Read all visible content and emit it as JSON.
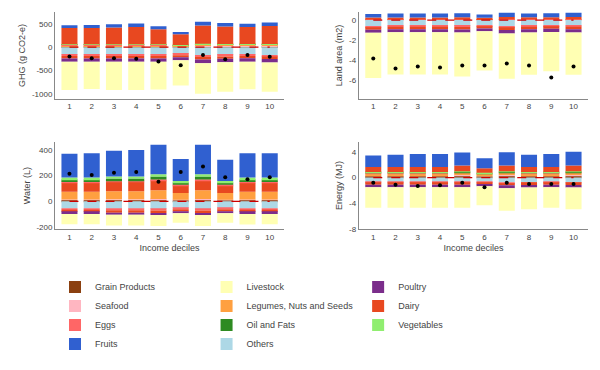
{
  "chart_data": [
    {
      "type": "bar",
      "stacked": true,
      "ylabel": "GHG (g CO2-e)",
      "grid": false,
      "x": [
        1,
        2,
        3,
        4,
        5,
        6,
        7,
        8,
        9,
        10
      ],
      "xlim": [
        0.35,
        10.65
      ],
      "xticks": [
        1,
        2,
        3,
        4,
        5,
        6,
        7,
        8,
        9,
        10
      ],
      "ylim": [
        -1100,
        750
      ],
      "yticks": [
        -1000,
        -500,
        0,
        500
      ],
      "series": [
        {
          "name": "Grain Products",
          "color": "#8B4010",
          "values": [
            10,
            10,
            10,
            10,
            10,
            8,
            12,
            12,
            12,
            12
          ]
        },
        {
          "name": "Seafood",
          "color": "#FFB6C1",
          "values": [
            15,
            15,
            15,
            15,
            15,
            12,
            18,
            18,
            18,
            18
          ]
        },
        {
          "name": "Legumes, Nuts and Seeds",
          "color": "#FFA040",
          "values": [
            20,
            20,
            20,
            20,
            20,
            16,
            24,
            22,
            22,
            22
          ]
        },
        {
          "name": "Eggs",
          "color": "#FF6666",
          "values": [
            5,
            5,
            5,
            5,
            5,
            4,
            6,
            6,
            6,
            6
          ]
        },
        {
          "name": "Oil and Fats",
          "color": "#2E8B22",
          "values": [
            5,
            5,
            5,
            5,
            5,
            4,
            6,
            6,
            6,
            6
          ]
        },
        {
          "name": "Vegetables",
          "color": "#90EE70",
          "values": [
            5,
            5,
            5,
            5,
            5,
            4,
            6,
            6,
            6,
            6
          ]
        },
        {
          "name": "Dairy",
          "color": "#E84820",
          "values": [
            350,
            350,
            360,
            370,
            320,
            230,
            390,
            370,
            360,
            380
          ]
        },
        {
          "name": "Fruits",
          "color": "#3060D0",
          "values": [
            60,
            65,
            70,
            75,
            65,
            45,
            80,
            75,
            70,
            75
          ]
        },
        {
          "name": "Others",
          "color": "#ADD8E6",
          "values": [
            -160,
            -160,
            -160,
            -160,
            -160,
            -145,
            -175,
            -165,
            -158,
            -168
          ]
        },
        {
          "name": "Eggs",
          "color": "#FF6666",
          "values": [
            -30,
            -30,
            -30,
            -30,
            -30,
            -26,
            -34,
            -32,
            -30,
            -32
          ]
        },
        {
          "name": "Dairy",
          "color": "#E84820",
          "values": [
            -50,
            -50,
            -50,
            -50,
            -50,
            -45,
            -55,
            -52,
            -50,
            -53
          ]
        },
        {
          "name": "Poultry",
          "color": "#7B2D8B",
          "values": [
            -70,
            -70,
            -70,
            -70,
            -70,
            -62,
            -78,
            -74,
            -70,
            -74
          ]
        },
        {
          "name": "Livestock",
          "color": "#FFFFB3",
          "values": [
            -600,
            -580,
            -600,
            -600,
            -590,
            -540,
            -650,
            -625,
            -590,
            -625
          ]
        },
        {
          "type": "line",
          "line_style": "dashed",
          "color": "#cc0000",
          "values": [
            0,
            0,
            0,
            0,
            0,
            0,
            0,
            0,
            0,
            0
          ]
        },
        {
          "type": "scatter",
          "marker": "circle",
          "color": "black",
          "values": [
            -200,
            -235,
            -235,
            -245,
            -305,
            -385,
            -165,
            -255,
            -165,
            -205
          ]
        }
      ]
    },
    {
      "type": "bar",
      "stacked": true,
      "ylabel": "Land area (m2)",
      "grid": false,
      "x": [
        1,
        2,
        3,
        4,
        5,
        6,
        7,
        8,
        9,
        10
      ],
      "xlim": [
        0.35,
        10.65
      ],
      "xticks": [
        1,
        2,
        3,
        4,
        5,
        6,
        7,
        8,
        9,
        10
      ],
      "ylim": [
        -7.8,
        0.8
      ],
      "yticks": [
        -6,
        -4,
        -2,
        0
      ],
      "series": [
        {
          "name": "Seafood",
          "color": "#FFB6C1",
          "values": [
            0.02,
            0.02,
            0.02,
            0.02,
            0.02,
            0.02,
            0.03,
            0.03,
            0.03,
            0.03
          ]
        },
        {
          "name": "Legumes, Nuts and Seeds",
          "color": "#FFA040",
          "values": [
            0.03,
            0.03,
            0.03,
            0.03,
            0.03,
            0.03,
            0.04,
            0.04,
            0.04,
            0.04
          ]
        },
        {
          "name": "Eggs",
          "color": "#FF6666",
          "values": [
            0.01,
            0.01,
            0.01,
            0.01,
            0.01,
            0.01,
            0.01,
            0.01,
            0.01,
            0.01
          ]
        },
        {
          "name": "Dairy",
          "color": "#E84820",
          "values": [
            0.2,
            0.2,
            0.2,
            0.2,
            0.22,
            0.18,
            0.22,
            0.2,
            0.2,
            0.22
          ]
        },
        {
          "name": "Fruits",
          "color": "#3060D0",
          "values": [
            0.35,
            0.38,
            0.4,
            0.4,
            0.4,
            0.3,
            0.42,
            0.38,
            0.4,
            0.42
          ]
        },
        {
          "name": "Others",
          "color": "#ADD8E6",
          "values": [
            -0.6,
            -0.55,
            -0.55,
            -0.55,
            -0.58,
            -0.52,
            -0.6,
            -0.55,
            -0.52,
            -0.55
          ]
        },
        {
          "name": "Eggs",
          "color": "#FF6666",
          "values": [
            -0.1,
            -0.1,
            -0.1,
            -0.1,
            -0.1,
            -0.09,
            -0.11,
            -0.1,
            -0.1,
            -0.1
          ]
        },
        {
          "name": "Dairy",
          "color": "#E84820",
          "values": [
            -0.25,
            -0.25,
            -0.25,
            -0.25,
            -0.25,
            -0.22,
            -0.28,
            -0.26,
            -0.25,
            -0.26
          ]
        },
        {
          "name": "Poultry",
          "color": "#7B2D8B",
          "values": [
            -0.3,
            -0.3,
            -0.3,
            -0.3,
            -0.3,
            -0.27,
            -0.33,
            -0.31,
            -0.3,
            -0.31
          ]
        },
        {
          "name": "Livestock",
          "color": "#FFFFB3",
          "values": [
            -4.5,
            -4.2,
            -4.2,
            -4.2,
            -4.35,
            -3.9,
            -4.5,
            -4.2,
            -3.9,
            -4.2
          ]
        },
        {
          "type": "line",
          "line_style": "dashed",
          "color": "#cc0000",
          "values": [
            0,
            0,
            0,
            0,
            0,
            0,
            0,
            0,
            0,
            0
          ]
        },
        {
          "type": "scatter",
          "marker": "circle",
          "color": "black",
          "values": [
            -3.8,
            -4.8,
            -4.6,
            -4.7,
            -4.5,
            -4.5,
            -4.3,
            -4.5,
            -5.7,
            -4.6
          ]
        }
      ]
    },
    {
      "type": "bar",
      "stacked": true,
      "ylabel": "Water (L)",
      "xlabel": "Income deciles",
      "grid": false,
      "x": [
        1,
        2,
        3,
        4,
        5,
        6,
        7,
        8,
        9,
        10
      ],
      "xlim": [
        0.35,
        10.65
      ],
      "xticks": [
        1,
        2,
        3,
        4,
        5,
        6,
        7,
        8,
        9,
        10
      ],
      "ylim": [
        -215,
        460
      ],
      "yticks": [
        -200,
        0,
        200,
        400
      ],
      "series": [
        {
          "name": "Grain Products",
          "color": "#8B4010",
          "values": [
            10,
            10,
            11,
            11,
            12,
            9,
            12,
            9,
            10,
            10
          ]
        },
        {
          "name": "Seafood",
          "color": "#FFB6C1",
          "values": [
            5,
            5,
            5,
            5,
            6,
            4,
            6,
            4,
            5,
            5
          ]
        },
        {
          "name": "Legumes, Nuts and Seeds",
          "color": "#FFA040",
          "values": [
            60,
            60,
            63,
            63,
            68,
            52,
            68,
            52,
            60,
            60
          ]
        },
        {
          "name": "Dairy",
          "color": "#E84820",
          "values": [
            70,
            70,
            73,
            73,
            78,
            60,
            78,
            60,
            70,
            70
          ]
        },
        {
          "name": "Eggs",
          "color": "#FF6666",
          "values": [
            5,
            5,
            5,
            5,
            6,
            4,
            6,
            4,
            5,
            5
          ]
        },
        {
          "name": "Oil and Fats",
          "color": "#2E8B22",
          "values": [
            20,
            20,
            21,
            21,
            23,
            17,
            23,
            17,
            20,
            20
          ]
        },
        {
          "name": "Vegetables",
          "color": "#90EE70",
          "values": [
            15,
            15,
            16,
            16,
            17,
            13,
            17,
            13,
            15,
            15
          ]
        },
        {
          "name": "Fruits",
          "color": "#3060D0",
          "values": [
            185,
            190,
            200,
            205,
            230,
            170,
            230,
            165,
            190,
            190
          ]
        },
        {
          "name": "Others",
          "color": "#ADD8E6",
          "values": [
            -55,
            -55,
            -58,
            -58,
            -60,
            -52,
            -60,
            -52,
            -55,
            -55
          ]
        },
        {
          "name": "Eggs",
          "color": "#FF6666",
          "values": [
            -10,
            -10,
            -11,
            -11,
            -11,
            -9,
            -11,
            -9,
            -10,
            -10
          ]
        },
        {
          "name": "Dairy",
          "color": "#E84820",
          "values": [
            -18,
            -18,
            -19,
            -19,
            -19,
            -17,
            -19,
            -17,
            -18,
            -18
          ]
        },
        {
          "name": "Poultry",
          "color": "#7B2D8B",
          "values": [
            -15,
            -15,
            -16,
            -16,
            -16,
            -14,
            -16,
            -14,
            -15,
            -15
          ]
        },
        {
          "name": "Livestock",
          "color": "#FFFFB3",
          "values": [
            -80,
            -80,
            -84,
            -84,
            -85,
            -75,
            -85,
            -75,
            -82,
            -80
          ]
        },
        {
          "type": "line",
          "line_style": "dashed",
          "color": "#cc0000",
          "values": [
            0,
            0,
            0,
            0,
            0,
            0,
            0,
            0,
            0,
            0
          ]
        },
        {
          "type": "scatter",
          "marker": "circle",
          "color": "black",
          "values": [
            215,
            205,
            222,
            228,
            152,
            228,
            272,
            187,
            172,
            187
          ]
        }
      ]
    },
    {
      "type": "bar",
      "stacked": true,
      "ylabel": "Energy (MJ)",
      "xlabel": "Income deciles",
      "grid": false,
      "x": [
        1,
        2,
        3,
        4,
        5,
        6,
        7,
        8,
        9,
        10
      ],
      "xlim": [
        0.35,
        10.65
      ],
      "xticks": [
        1,
        2,
        3,
        4,
        5,
        6,
        7,
        8,
        9,
        10
      ],
      "ylim": [
        -8.0,
        5.5
      ],
      "yticks": [
        -8,
        -4,
        0,
        4
      ],
      "series": [
        {
          "name": "Grain Products",
          "color": "#8B4010",
          "values": [
            0.25,
            0.25,
            0.25,
            0.25,
            0.28,
            0.22,
            0.28,
            0.25,
            0.25,
            0.28
          ]
        },
        {
          "name": "Seafood",
          "color": "#FFB6C1",
          "values": [
            0.1,
            0.1,
            0.1,
            0.1,
            0.12,
            0.09,
            0.12,
            0.1,
            0.1,
            0.12
          ]
        },
        {
          "name": "Legumes, Nuts and Seeds",
          "color": "#FFA040",
          "values": [
            0.3,
            0.3,
            0.3,
            0.3,
            0.34,
            0.26,
            0.34,
            0.3,
            0.3,
            0.34
          ]
        },
        {
          "name": "Eggs",
          "color": "#FF6666",
          "values": [
            0.05,
            0.05,
            0.05,
            0.05,
            0.06,
            0.04,
            0.06,
            0.05,
            0.05,
            0.06
          ]
        },
        {
          "name": "Oil and Fats",
          "color": "#2E8B22",
          "values": [
            0.05,
            0.05,
            0.05,
            0.05,
            0.06,
            0.04,
            0.06,
            0.05,
            0.05,
            0.06
          ]
        },
        {
          "name": "Vegetables",
          "color": "#90EE70",
          "values": [
            0.1,
            0.1,
            0.1,
            0.1,
            0.12,
            0.09,
            0.12,
            0.1,
            0.1,
            0.12
          ]
        },
        {
          "name": "Dairy",
          "color": "#E84820",
          "values": [
            0.8,
            0.8,
            0.8,
            0.8,
            0.9,
            0.7,
            0.9,
            0.8,
            0.8,
            0.9
          ]
        },
        {
          "name": "Fruits",
          "color": "#3060D0",
          "values": [
            1.8,
            1.9,
            2.0,
            2.0,
            2.0,
            1.55,
            2.05,
            1.9,
            2.0,
            2.15
          ]
        },
        {
          "name": "Others",
          "color": "#ADD8E6",
          "values": [
            -0.7,
            -0.7,
            -0.7,
            -0.7,
            -0.7,
            -0.64,
            -0.77,
            -0.73,
            -0.7,
            -0.73
          ]
        },
        {
          "name": "Eggs",
          "color": "#FF6666",
          "values": [
            -0.1,
            -0.1,
            -0.1,
            -0.1,
            -0.1,
            -0.09,
            -0.11,
            -0.1,
            -0.1,
            -0.1
          ]
        },
        {
          "name": "Dairy",
          "color": "#E84820",
          "values": [
            -0.3,
            -0.3,
            -0.3,
            -0.3,
            -0.3,
            -0.27,
            -0.33,
            -0.31,
            -0.3,
            -0.31
          ]
        },
        {
          "name": "Poultry",
          "color": "#7B2D8B",
          "values": [
            -0.4,
            -0.4,
            -0.4,
            -0.4,
            -0.4,
            -0.36,
            -0.44,
            -0.42,
            -0.4,
            -0.42
          ]
        },
        {
          "name": "Livestock",
          "color": "#FFFFB3",
          "values": [
            -3.2,
            -3.2,
            -3.2,
            -3.2,
            -3.2,
            -2.95,
            -3.5,
            -3.35,
            -3.2,
            -3.35
          ]
        },
        {
          "type": "line",
          "line_style": "dashed",
          "color": "#cc0000",
          "values": [
            0,
            0,
            0,
            0,
            0,
            0,
            0,
            0,
            0,
            0
          ]
        },
        {
          "type": "scatter",
          "marker": "circle",
          "color": "black",
          "values": [
            -0.8,
            -1.1,
            -1.3,
            -1.2,
            -0.8,
            -1.5,
            -0.8,
            -1.0,
            -1.0,
            -1.0
          ]
        }
      ]
    }
  ],
  "legend": "bottom",
  "legend_order": [
    "Grain Products",
    "Livestock",
    "Poultry",
    "Seafood",
    "Legumes, Nuts and Seeds",
    "Dairy",
    "Eggs",
    "Oil and Fats",
    "Vegetables",
    "Fruits",
    "Others"
  ]
}
